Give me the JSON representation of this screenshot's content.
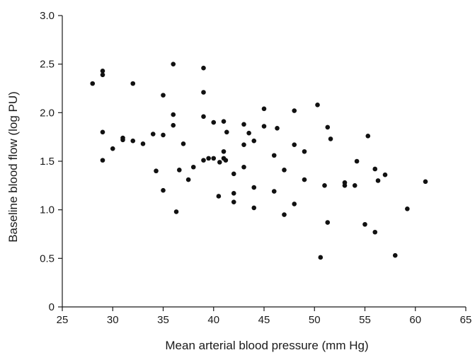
{
  "chart_data": {
    "type": "scatter",
    "title": "",
    "xlabel": "Mean arterial blood pressure (mm Hg)",
    "ylabel": "Baseline blood flow (log PU)",
    "xlim": [
      25,
      65
    ],
    "ylim": [
      0,
      3.0
    ],
    "xticks": [
      "25",
      "30",
      "35",
      "40",
      "45",
      "50",
      "55",
      "60",
      "65"
    ],
    "yticks": [
      "0",
      "0.5",
      "1.0",
      "1.5",
      "2.0",
      "2.5",
      "3.0"
    ],
    "grid": false,
    "legend": "none",
    "marker_color": "#111111",
    "points": [
      [
        28,
        2.3
      ],
      [
        29,
        2.43
      ],
      [
        29,
        2.39
      ],
      [
        29,
        1.8
      ],
      [
        29,
        1.51
      ],
      [
        30,
        1.63
      ],
      [
        31,
        1.74
      ],
      [
        31,
        1.72
      ],
      [
        32,
        2.3
      ],
      [
        32,
        1.71
      ],
      [
        33,
        1.68
      ],
      [
        34,
        1.78
      ],
      [
        34.3,
        1.4
      ],
      [
        35,
        2.18
      ],
      [
        35,
        1.77
      ],
      [
        35,
        1.2
      ],
      [
        36,
        2.5
      ],
      [
        36,
        1.98
      ],
      [
        36,
        1.87
      ],
      [
        36.3,
        0.98
      ],
      [
        36.6,
        1.41
      ],
      [
        37,
        1.68
      ],
      [
        37.5,
        1.31
      ],
      [
        38,
        1.44
      ],
      [
        39,
        2.46
      ],
      [
        39,
        2.21
      ],
      [
        39,
        1.96
      ],
      [
        39,
        1.51
      ],
      [
        39.5,
        1.53
      ],
      [
        40,
        1.9
      ],
      [
        40,
        1.53
      ],
      [
        40.5,
        1.14
      ],
      [
        40.6,
        1.49
      ],
      [
        41,
        1.91
      ],
      [
        41,
        1.6
      ],
      [
        41,
        1.53
      ],
      [
        41.2,
        1.51
      ],
      [
        41.3,
        1.8
      ],
      [
        42,
        1.37
      ],
      [
        42,
        1.17
      ],
      [
        42,
        1.08
      ],
      [
        43,
        1.88
      ],
      [
        43,
        1.67
      ],
      [
        43,
        1.44
      ],
      [
        43.5,
        1.79
      ],
      [
        44,
        1.71
      ],
      [
        44,
        1.23
      ],
      [
        44,
        1.02
      ],
      [
        45,
        2.04
      ],
      [
        45,
        1.86
      ],
      [
        46,
        1.56
      ],
      [
        46,
        1.19
      ],
      [
        46.3,
        1.84
      ],
      [
        47,
        1.41
      ],
      [
        47,
        0.95
      ],
      [
        48,
        2.02
      ],
      [
        48,
        1.67
      ],
      [
        48,
        1.06
      ],
      [
        49,
        1.6
      ],
      [
        49,
        1.31
      ],
      [
        50.3,
        2.08
      ],
      [
        50.6,
        0.51
      ],
      [
        51,
        1.25
      ],
      [
        51.3,
        1.85
      ],
      [
        51.3,
        0.87
      ],
      [
        51.6,
        1.73
      ],
      [
        53,
        1.28
      ],
      [
        53,
        1.25
      ],
      [
        54,
        1.25
      ],
      [
        54.2,
        1.5
      ],
      [
        55,
        0.85
      ],
      [
        55.3,
        1.76
      ],
      [
        56,
        1.42
      ],
      [
        56,
        0.77
      ],
      [
        56.3,
        1.3
      ],
      [
        57,
        1.36
      ],
      [
        58,
        0.53
      ],
      [
        59.2,
        1.01
      ],
      [
        61,
        1.29
      ]
    ]
  }
}
